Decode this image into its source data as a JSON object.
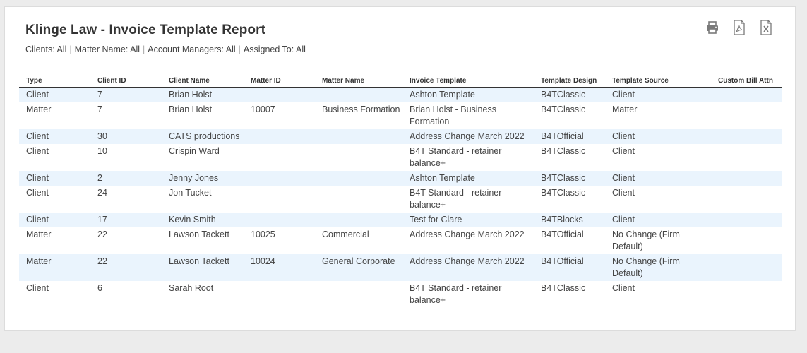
{
  "report": {
    "title": "Klinge Law - Invoice Template Report",
    "filters": [
      "Clients: All",
      "Matter Name: All",
      "Account Managers: All",
      "Assigned To: All"
    ],
    "filter_separator": "|"
  },
  "toolbar": {
    "icons": [
      "print-icon",
      "pdf-icon",
      "excel-icon"
    ]
  },
  "table": {
    "headers": {
      "type": "Type",
      "client_id": "Client ID",
      "client_name": "Client Name",
      "matter_id": "Matter ID",
      "matter_name": "Matter Name",
      "invoice_template": "Invoice Template",
      "template_design": "Template Design",
      "template_source": "Template Source",
      "custom_bill_attn": "Custom Bill Attn"
    },
    "rows": [
      {
        "type": "Client",
        "client_id": "7",
        "client_name": "Brian Holst",
        "matter_id": "",
        "matter_name": "",
        "invoice_template": "Ashton Template",
        "template_design": "B4TClassic",
        "template_source": "Client",
        "custom_bill_attn": ""
      },
      {
        "type": "Matter",
        "client_id": "7",
        "client_name": "Brian Holst",
        "matter_id": "10007",
        "matter_name": "Business Formation",
        "invoice_template": "Brian Holst - Business Formation",
        "template_design": "B4TClassic",
        "template_source": "Matter",
        "custom_bill_attn": ""
      },
      {
        "type": "Client",
        "client_id": "30",
        "client_name": "CATS productions",
        "matter_id": "",
        "matter_name": "",
        "invoice_template": "Address Change March 2022",
        "template_design": "B4TOfficial",
        "template_source": "Client",
        "custom_bill_attn": ""
      },
      {
        "type": "Client",
        "client_id": "10",
        "client_name": "Crispin Ward",
        "matter_id": "",
        "matter_name": "",
        "invoice_template": "B4T Standard - retainer balance+",
        "template_design": "B4TClassic",
        "template_source": "Client",
        "custom_bill_attn": ""
      },
      {
        "type": "Client",
        "client_id": "2",
        "client_name": "Jenny Jones",
        "matter_id": "",
        "matter_name": "",
        "invoice_template": "Ashton Template",
        "template_design": "B4TClassic",
        "template_source": "Client",
        "custom_bill_attn": ""
      },
      {
        "type": "Client",
        "client_id": "24",
        "client_name": "Jon Tucket",
        "matter_id": "",
        "matter_name": "",
        "invoice_template": "B4T Standard - retainer balance+",
        "template_design": "B4TClassic",
        "template_source": "Client",
        "custom_bill_attn": ""
      },
      {
        "type": "Client",
        "client_id": "17",
        "client_name": "Kevin Smith",
        "matter_id": "",
        "matter_name": "",
        "invoice_template": "Test for Clare",
        "template_design": "B4TBlocks",
        "template_source": "Client",
        "custom_bill_attn": ""
      },
      {
        "type": "Matter",
        "client_id": "22",
        "client_name": "Lawson Tackett",
        "matter_id": "10025",
        "matter_name": "Commercial",
        "invoice_template": "Address Change March 2022",
        "template_design": "B4TOfficial",
        "template_source": "No Change (Firm Default)",
        "custom_bill_attn": ""
      },
      {
        "type": "Matter",
        "client_id": "22",
        "client_name": "Lawson Tackett",
        "matter_id": "10024",
        "matter_name": "General Corporate",
        "invoice_template": "Address Change March 2022",
        "template_design": "B4TOfficial",
        "template_source": "No Change (Firm Default)",
        "custom_bill_attn": ""
      },
      {
        "type": "Client",
        "client_id": "6",
        "client_name": "Sarah Root",
        "matter_id": "",
        "matter_name": "",
        "invoice_template": "B4T Standard - retainer balance+",
        "template_design": "B4TClassic",
        "template_source": "Client",
        "custom_bill_attn": ""
      }
    ]
  }
}
